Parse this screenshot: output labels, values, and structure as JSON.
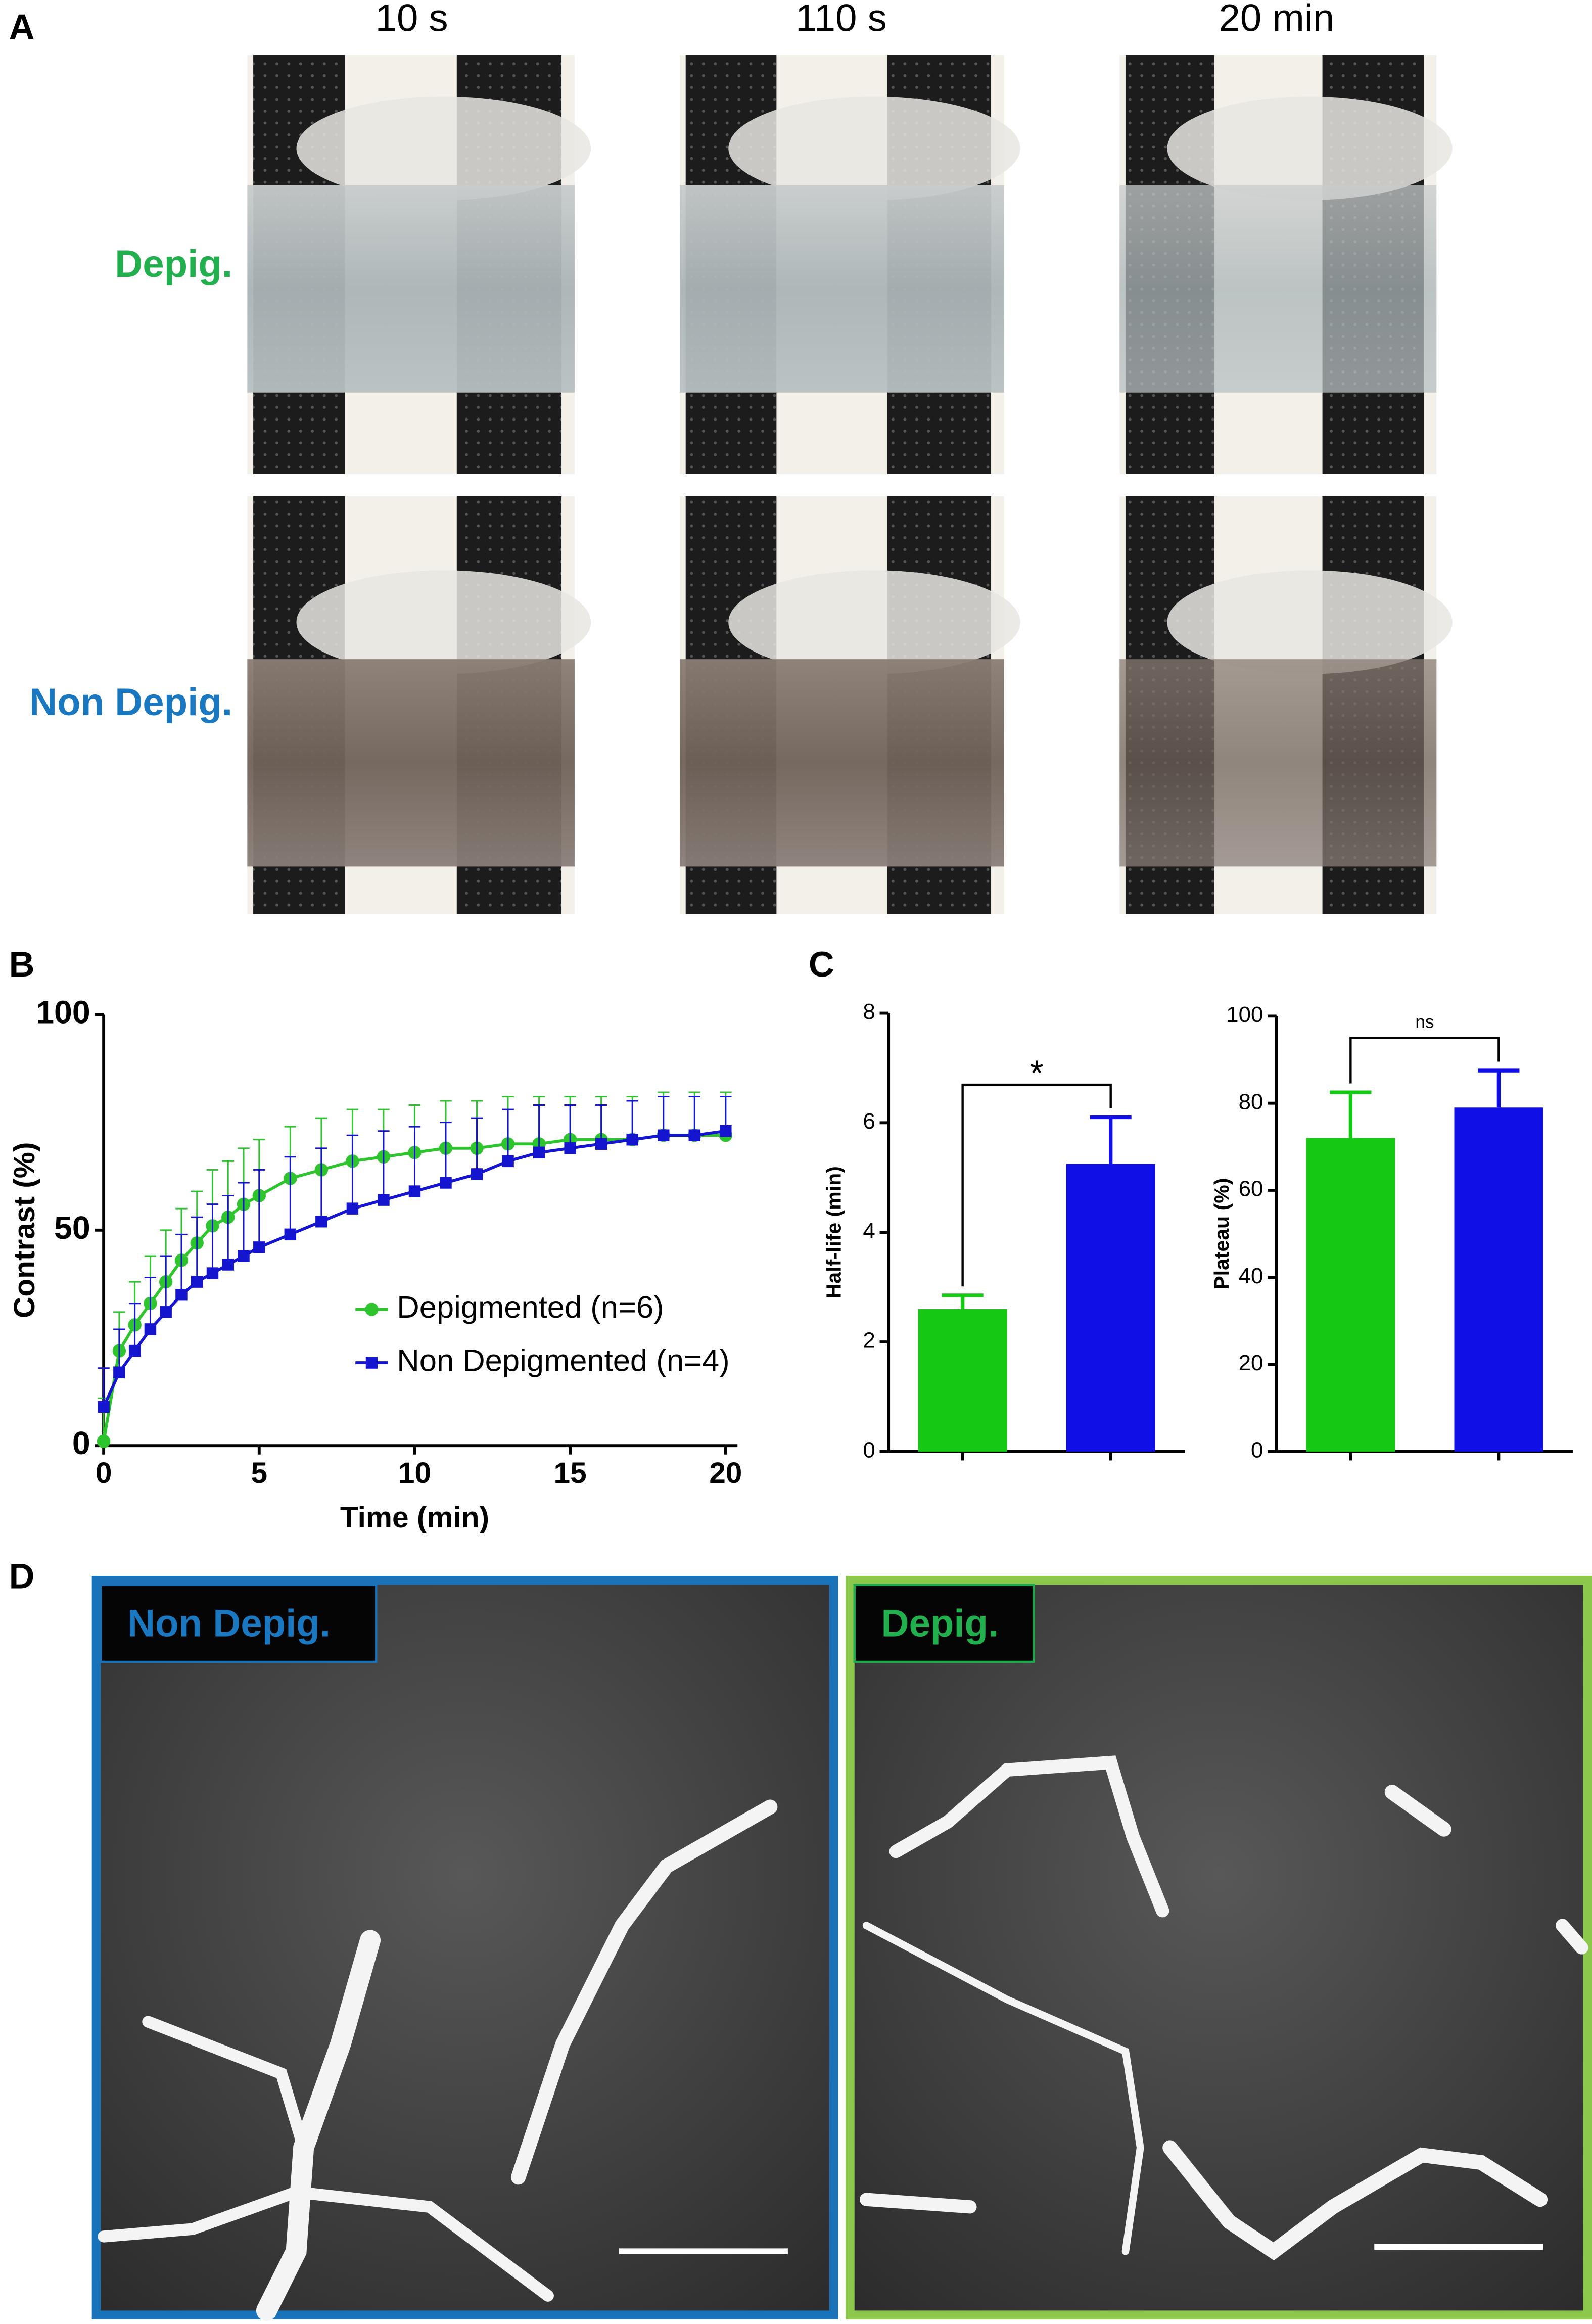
{
  "panel_labels": [
    "A",
    "B",
    "C",
    "D"
  ],
  "panel_a": {
    "column_labels": [
      "10 s",
      "110 s",
      "20 min"
    ],
    "row_labels": [
      "Depig.",
      "Non Depig."
    ]
  },
  "panel_d": {
    "image_labels": [
      "Non Depig.",
      "Depig."
    ]
  },
  "chart_data": [
    {
      "type": "line",
      "xlabel": "Time (min)",
      "ylabel": "Contrast (%)",
      "x": [
        0,
        0.5,
        1,
        1.5,
        2,
        2.5,
        3,
        3.5,
        4,
        4.5,
        5,
        6,
        7,
        8,
        9,
        10,
        11,
        12,
        13,
        14,
        15,
        16,
        17,
        18,
        19,
        20
      ],
      "series": [
        {
          "name": "Depigmented (n=6)",
          "color": "#2ec42e",
          "marker": "circle",
          "values": [
            1,
            22,
            28,
            33,
            38,
            43,
            47,
            51,
            53,
            56,
            58,
            62,
            64,
            66,
            67,
            68,
            69,
            69,
            70,
            70,
            71,
            71,
            71,
            72,
            72,
            72
          ],
          "errors": [
            10,
            9,
            10,
            11,
            12,
            12,
            12,
            13,
            13,
            13,
            13,
            12,
            12,
            12,
            11,
            11,
            11,
            11,
            11,
            11,
            10,
            10,
            10,
            10,
            10,
            10
          ]
        },
        {
          "name": "Non Depigmented (n=4)",
          "color": "#1515d0",
          "marker": "square",
          "values": [
            9,
            17,
            22,
            27,
            31,
            35,
            38,
            40,
            42,
            44,
            46,
            49,
            52,
            55,
            57,
            59,
            61,
            63,
            66,
            68,
            69,
            70,
            71,
            72,
            72,
            73
          ],
          "errors": [
            9,
            10,
            11,
            12,
            13,
            14,
            15,
            16,
            16,
            17,
            18,
            18,
            17,
            17,
            16,
            15,
            14,
            13,
            12,
            11,
            10,
            9,
            9,
            9,
            9,
            8
          ]
        }
      ],
      "xlim": [
        0,
        20
      ],
      "xticks": [
        0,
        5,
        10,
        15,
        20
      ],
      "ylim": [
        0,
        100
      ],
      "yticks": [
        0,
        50,
        100
      ]
    },
    {
      "type": "bar",
      "ylabel": "Half-life (min)",
      "categories": [
        null,
        null
      ],
      "values": [
        2.6,
        5.25
      ],
      "errors": [
        0.25,
        0.85
      ],
      "colors": [
        "#14c814",
        "#0f0fe6"
      ],
      "annotation": "*",
      "ylim": [
        0,
        8
      ],
      "yticks": [
        0,
        2,
        4,
        6,
        8
      ]
    },
    {
      "type": "bar",
      "ylabel": "Plateau (%)",
      "categories": [
        null,
        null
      ],
      "values": [
        72,
        79
      ],
      "errors": [
        10.5,
        8.5
      ],
      "colors": [
        "#14c814",
        "#0f0fe6"
      ],
      "annotation": "ns",
      "ylim": [
        0,
        100
      ],
      "yticks": [
        0,
        20,
        40,
        60,
        80,
        100
      ]
    }
  ]
}
